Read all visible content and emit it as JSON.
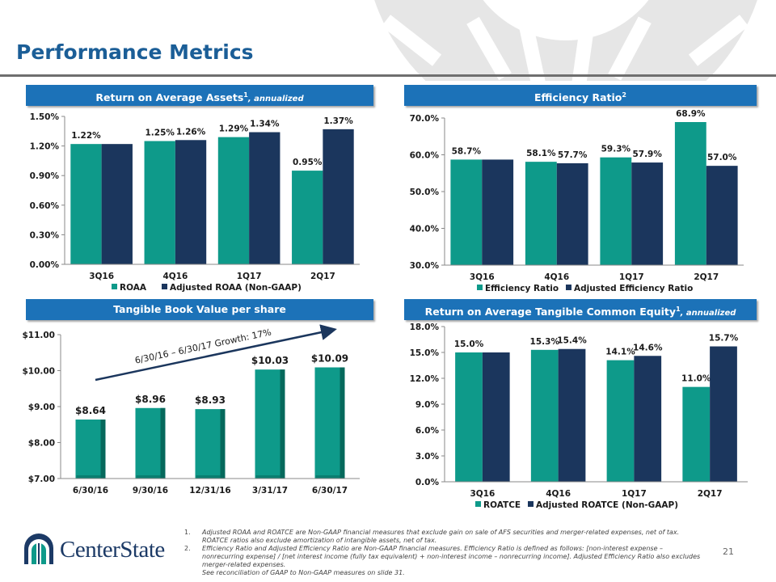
{
  "page": {
    "title": "Performance Metrics",
    "page_number": "21"
  },
  "panels": {
    "roaa": {
      "title": "Return on Average Assets",
      "sup": "1",
      "note": ", annualized"
    },
    "eff": {
      "title": "Efficiency Ratio",
      "sup": "2",
      "note": ""
    },
    "tbv": {
      "title": "Tangible Book Value per share",
      "sup": "",
      "note": ""
    },
    "roatce": {
      "title": "Return on Average Tangible Common Equity",
      "sup": "1",
      "note": ", annualized"
    }
  },
  "colors": {
    "teal": "#0e9a8a",
    "navy": "#1b365d",
    "panel_title": "#1c72b8"
  },
  "chart_data": [
    {
      "id": "roaa",
      "type": "bar",
      "categories": [
        "3Q16",
        "4Q16",
        "1Q17",
        "2Q17"
      ],
      "series": [
        {
          "name": "ROAA",
          "values": [
            1.22,
            1.25,
            1.29,
            0.95
          ],
          "labels": [
            "1.22%",
            "1.25%",
            "1.29%",
            "0.95%"
          ]
        },
        {
          "name": "Adjusted ROAA (Non-GAAP)",
          "values": [
            1.22,
            1.26,
            1.34,
            1.37
          ],
          "labels": [
            "",
            "1.26%",
            "1.34%",
            "1.37%"
          ]
        }
      ],
      "ylim": [
        0,
        1.5
      ],
      "yticks": [
        0,
        0.3,
        0.6,
        0.9,
        1.2,
        1.5
      ],
      "ytick_labels": [
        "0.00%",
        "0.30%",
        "0.60%",
        "0.90%",
        "1.20%",
        "1.50%"
      ],
      "legend": "bottom"
    },
    {
      "id": "eff",
      "type": "bar",
      "categories": [
        "3Q16",
        "4Q16",
        "1Q17",
        "2Q17"
      ],
      "series": [
        {
          "name": "Efficiency Ratio",
          "values": [
            58.7,
            58.1,
            59.3,
            68.9
          ],
          "labels": [
            "58.7%",
            "58.1%",
            "59.3%",
            "68.9%"
          ]
        },
        {
          "name": "Adjusted Efficiency Ratio",
          "values": [
            58.7,
            57.7,
            57.9,
            57.0
          ],
          "labels": [
            "",
            "57.7%",
            "57.9%",
            "57.0%"
          ]
        }
      ],
      "ylim": [
        30,
        70
      ],
      "yticks": [
        30,
        40,
        50,
        60,
        70
      ],
      "ytick_labels": [
        "30.0%",
        "40.0%",
        "50.0%",
        "60.0%",
        "70.0%"
      ],
      "legend": "bottom"
    },
    {
      "id": "tbv",
      "type": "bar",
      "categories": [
        "6/30/16",
        "9/30/16",
        "12/31/16",
        "3/31/17",
        "6/30/17"
      ],
      "series": [
        {
          "name": "Tangible Book Value per share",
          "values": [
            8.64,
            8.96,
            8.93,
            10.03,
            10.09
          ],
          "labels": [
            "$8.64",
            "$8.96",
            "$8.93",
            "$10.03",
            "$10.09"
          ]
        }
      ],
      "ylim": [
        7,
        11
      ],
      "yticks": [
        7,
        8,
        9,
        10,
        11
      ],
      "ytick_labels": [
        "$7.00",
        "$8.00",
        "$9.00",
        "$10.00",
        "$11.00"
      ],
      "annotation": "6/30/16 – 6/30/17 Growth: 17%"
    },
    {
      "id": "roatce",
      "type": "bar",
      "categories": [
        "3Q16",
        "4Q16",
        "1Q17",
        "2Q17"
      ],
      "series": [
        {
          "name": "ROATCE",
          "values": [
            15.0,
            15.3,
            14.1,
            11.0
          ],
          "labels": [
            "15.0%",
            "15.3%",
            "14.1%",
            "11.0%"
          ]
        },
        {
          "name": "Adjusted ROATCE (Non-GAAP)",
          "values": [
            15.0,
            15.4,
            14.6,
            15.7
          ],
          "labels": [
            "",
            "15.4%",
            "14.6%",
            "15.7%"
          ]
        }
      ],
      "ylim": [
        0,
        18
      ],
      "yticks": [
        0,
        3,
        6,
        9,
        12,
        15,
        18
      ],
      "ytick_labels": [
        "0.0%",
        "3.0%",
        "6.0%",
        "9.0%",
        "12.0%",
        "15.0%",
        "18.0%"
      ],
      "legend": "bottom"
    }
  ],
  "footnotes": [
    {
      "num": "1.",
      "text": "Adjusted ROAA and ROATCE are Non-GAAP financial measures that exclude gain on sale of AFS securities and merger-related expenses, net of tax.  ROATCE ratios also exclude amortization of intangible assets, net of tax."
    },
    {
      "num": "2.",
      "text": "Efficiency Ratio and Adjusted Efficiency Ratio are Non-GAAP financial measures.  Efficiency Ratio is defined as follows:  [non-interest expense – nonrecurring expense] / [net interest income (fully tax equivalent) + non-interest income – nonrecurring income].  Adjusted Efficiency Ratio also excludes merger-related expenses."
    },
    {
      "num": "",
      "text": "See reconciliation of GAAP to Non-GAAP measures on slide 31."
    }
  ],
  "logo": {
    "text": "CenterState"
  }
}
